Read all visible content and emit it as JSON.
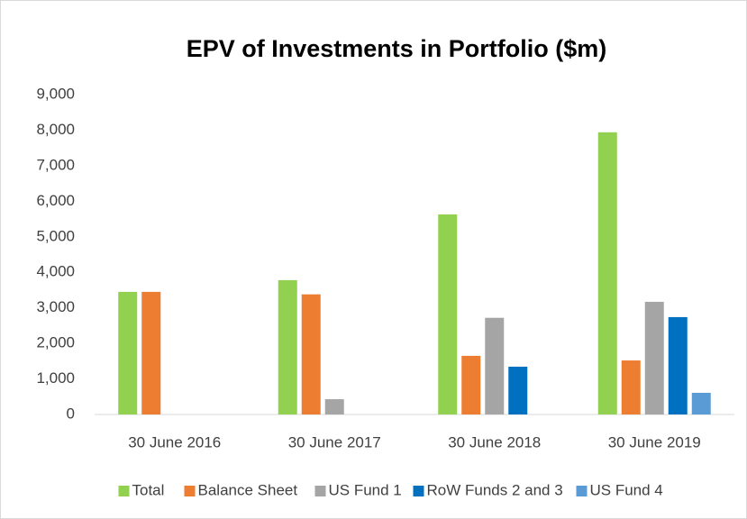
{
  "chart_data": {
    "type": "bar",
    "title": "EPV of Investments in Portfolio ($m)",
    "categories": [
      "30 June 2016",
      "30 June 2017",
      "30 June 2018",
      "30 June 2019"
    ],
    "series": [
      {
        "name": "Total",
        "color": "#92d050",
        "values": [
          3450,
          3780,
          5630,
          7940
        ]
      },
      {
        "name": "Balance Sheet",
        "color": "#ed7d31",
        "values": [
          3450,
          3380,
          1650,
          1520
        ]
      },
      {
        "name": "US Fund 1",
        "color": "#a5a5a5",
        "values": [
          null,
          430,
          2720,
          3170
        ]
      },
      {
        "name": "RoW Funds 2 and 3",
        "color": "#0070c0",
        "values": [
          null,
          null,
          1345,
          2740
        ]
      },
      {
        "name": "US Fund 4",
        "color": "#5b9bd5",
        "values": [
          null,
          null,
          null,
          610
        ]
      }
    ],
    "ylim": [
      0,
      9000
    ],
    "yticks": [
      0,
      {
        "value": 1000,
        "label": "1,000"
      },
      {
        "value": 2000,
        "label": "2,000"
      },
      {
        "value": 3000,
        "label": "3,000"
      },
      {
        "value": 4000,
        "label": "4,000"
      },
      {
        "value": 5000,
        "label": "5,000"
      },
      {
        "value": 6000,
        "label": "6,000"
      },
      {
        "value": 7000,
        "label": "7,000"
      },
      {
        "value": 8000,
        "label": "8,000"
      },
      {
        "value": 9000,
        "label": "9,000"
      }
    ],
    "grid": false,
    "legend": "bottom"
  }
}
